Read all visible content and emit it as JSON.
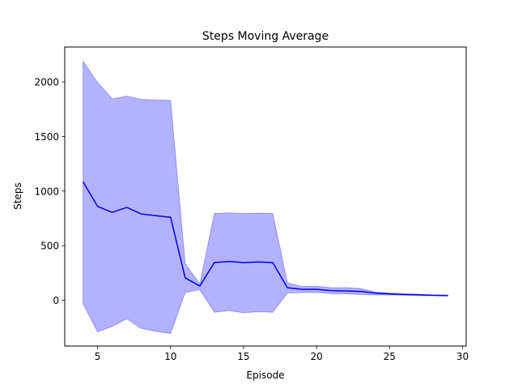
{
  "chart_data": {
    "type": "line",
    "title": "Steps Moving Average",
    "xlabel": "Episode",
    "ylabel": "Steps",
    "xlim": [
      2.75,
      30.25
    ],
    "ylim": [
      -420,
      2320
    ],
    "xticks": [
      5,
      10,
      15,
      20,
      25,
      30
    ],
    "yticks": [
      0,
      500,
      1000,
      1500,
      2000
    ],
    "grid": false,
    "colors": {
      "line": "#0000ff",
      "band": "#0000ff"
    },
    "x": [
      4,
      5,
      6,
      7,
      8,
      9,
      10,
      11,
      12,
      13,
      14,
      15,
      16,
      17,
      18,
      19,
      20,
      21,
      22,
      23,
      24,
      25,
      26,
      27,
      28,
      29
    ],
    "series": [
      {
        "values": [
          1085,
          860,
          805,
          850,
          790,
          775,
          760,
          205,
          130,
          345,
          355,
          345,
          350,
          345,
          115,
          100,
          100,
          88,
          85,
          80,
          65,
          58,
          53,
          50,
          45,
          43
        ],
        "upper": [
          2190,
          1995,
          1845,
          1870,
          1840,
          1835,
          1830,
          335,
          150,
          795,
          800,
          795,
          798,
          795,
          160,
          125,
          128,
          115,
          115,
          108,
          75,
          65,
          58,
          54,
          48,
          45
        ],
        "lower": [
          -30,
          -290,
          -240,
          -170,
          -260,
          -285,
          -305,
          70,
          95,
          -110,
          -95,
          -115,
          -105,
          -110,
          65,
          70,
          72,
          60,
          58,
          52,
          48,
          48,
          45,
          42,
          40,
          38
        ]
      }
    ]
  }
}
